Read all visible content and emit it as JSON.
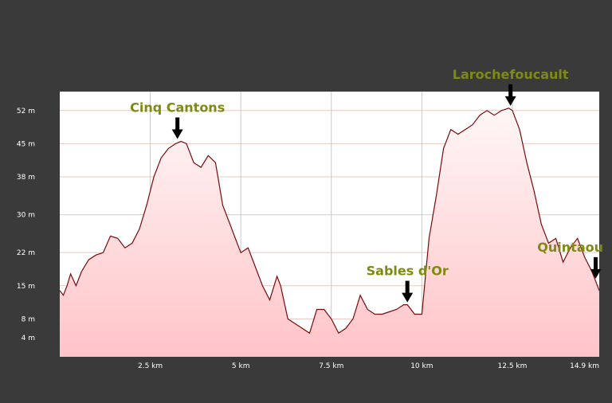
{
  "chart_data": {
    "type": "area",
    "title": "",
    "xlabel": "",
    "ylabel": "",
    "xlim": [
      0,
      14.9
    ],
    "ylim": [
      0,
      56
    ],
    "grid": true,
    "y_ticks": [
      {
        "value": 52,
        "label": "52 m"
      },
      {
        "value": 45,
        "label": "45 m"
      },
      {
        "value": 38,
        "label": "38 m"
      },
      {
        "value": 30,
        "label": "30 m"
      },
      {
        "value": 22,
        "label": "22 m"
      },
      {
        "value": 15,
        "label": "15 m"
      },
      {
        "value": 8,
        "label": "8 m"
      },
      {
        "value": 4,
        "label": "4 m"
      }
    ],
    "x_ticks": [
      {
        "value": 2.5,
        "label": "2.5 km"
      },
      {
        "value": 5,
        "label": "5 km"
      },
      {
        "value": 7.5,
        "label": "7.5 km"
      },
      {
        "value": 10,
        "label": "10 km"
      },
      {
        "value": 12.5,
        "label": "12.5 km"
      },
      {
        "value": 14.9,
        "label": "14.9 km"
      }
    ],
    "series": [
      {
        "color": "#7a0a0a",
        "fill": "#ffd4d6",
        "x": [
          0,
          0.1,
          0.2,
          0.3,
          0.45,
          0.6,
          0.8,
          1.0,
          1.2,
          1.4,
          1.6,
          1.8,
          2.0,
          2.2,
          2.4,
          2.6,
          2.8,
          3.0,
          3.2,
          3.35,
          3.5,
          3.7,
          3.9,
          4.1,
          4.3,
          4.5,
          4.7,
          4.9,
          5.0,
          5.2,
          5.4,
          5.6,
          5.8,
          6.0,
          6.1,
          6.3,
          6.5,
          6.7,
          6.9,
          7.1,
          7.3,
          7.4,
          7.5,
          7.7,
          7.9,
          8.1,
          8.3,
          8.5,
          8.7,
          8.9,
          9.1,
          9.3,
          9.5,
          9.6,
          9.8,
          10.0,
          10.2,
          10.4,
          10.6,
          10.8,
          11.0,
          11.2,
          11.4,
          11.6,
          11.8,
          12.0,
          12.2,
          12.4,
          12.5,
          12.7,
          12.9,
          13.1,
          13.3,
          13.5,
          13.7,
          13.9,
          14.1,
          14.3,
          14.5,
          14.7,
          14.9
        ],
        "y": [
          14,
          13,
          15,
          17.5,
          15,
          18,
          20.5,
          21.5,
          22,
          25.5,
          25,
          23,
          24,
          27,
          32,
          38,
          42,
          44,
          45,
          45.5,
          45,
          41,
          40,
          42.5,
          41,
          32,
          28,
          24,
          22,
          23,
          19,
          15,
          12,
          17,
          15,
          8,
          7,
          6,
          5,
          10,
          10,
          9,
          8,
          5,
          6,
          8,
          13,
          10,
          9,
          9,
          9.5,
          10,
          11,
          11,
          9,
          9,
          25,
          34,
          44,
          48,
          47,
          48,
          49,
          51,
          52,
          51,
          52,
          52.5,
          52,
          48,
          41,
          35,
          28,
          24,
          25,
          20,
          23,
          25,
          21,
          18,
          14
        ]
      }
    ],
    "annotations": [
      {
        "text": "Cinq Cantons",
        "x": 3.25,
        "y": 45.5
      },
      {
        "text": "Larochefoucault",
        "x": 12.45,
        "y": 52.5
      },
      {
        "text": "Sables d'Or",
        "x": 9.6,
        "y": 11
      },
      {
        "text": "Quintaou",
        "x": 14.8,
        "y": 16
      }
    ]
  }
}
